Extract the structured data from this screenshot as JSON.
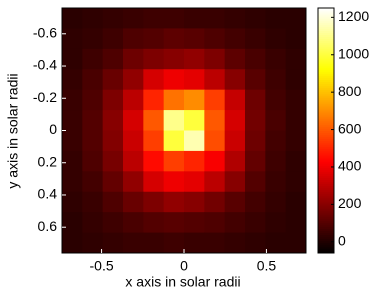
{
  "chart_data": {
    "type": "heatmap",
    "x_label": "x axis in solar radii",
    "y_label": "y axis in solar radii",
    "xlim": [
      -0.74,
      0.74
    ],
    "xticks": [
      -0.5,
      0,
      0.5
    ],
    "ylim": [
      -0.76,
      0.76
    ],
    "yticks": [
      -0.6,
      -0.4,
      -0.2,
      0,
      0.2,
      0.4,
      0.6
    ],
    "y_reversed": true,
    "colormap": "hot",
    "clim": [
      -60,
      1250
    ],
    "colorbar_ticks": [
      0,
      200,
      400,
      600,
      800,
      1000,
      1200
    ],
    "values": [
      [
        20,
        30,
        40,
        50,
        60,
        60,
        50,
        50,
        40,
        30,
        20,
        20
      ],
      [
        30,
        40,
        60,
        90,
        100,
        120,
        110,
        90,
        70,
        50,
        30,
        20
      ],
      [
        30,
        60,
        90,
        150,
        180,
        200,
        220,
        180,
        120,
        80,
        50,
        30
      ],
      [
        40,
        80,
        140,
        220,
        350,
        400,
        380,
        300,
        200,
        110,
        60,
        30
      ],
      [
        50,
        90,
        180,
        300,
        500,
        650,
        700,
        550,
        320,
        150,
        70,
        40
      ],
      [
        50,
        100,
        200,
        350,
        600,
        1100,
        1000,
        600,
        350,
        160,
        80,
        40
      ],
      [
        50,
        100,
        190,
        330,
        550,
        1000,
        1150,
        580,
        330,
        150,
        70,
        40
      ],
      [
        40,
        90,
        170,
        300,
        450,
        550,
        500,
        420,
        280,
        130,
        60,
        30
      ],
      [
        40,
        70,
        130,
        220,
        350,
        400,
        380,
        300,
        200,
        100,
        50,
        30
      ],
      [
        30,
        50,
        90,
        140,
        180,
        220,
        200,
        160,
        110,
        70,
        40,
        20
      ],
      [
        20,
        40,
        60,
        80,
        100,
        110,
        100,
        90,
        70,
        50,
        30,
        20
      ],
      [
        20,
        30,
        40,
        50,
        50,
        60,
        50,
        50,
        40,
        30,
        20,
        20
      ]
    ]
  }
}
